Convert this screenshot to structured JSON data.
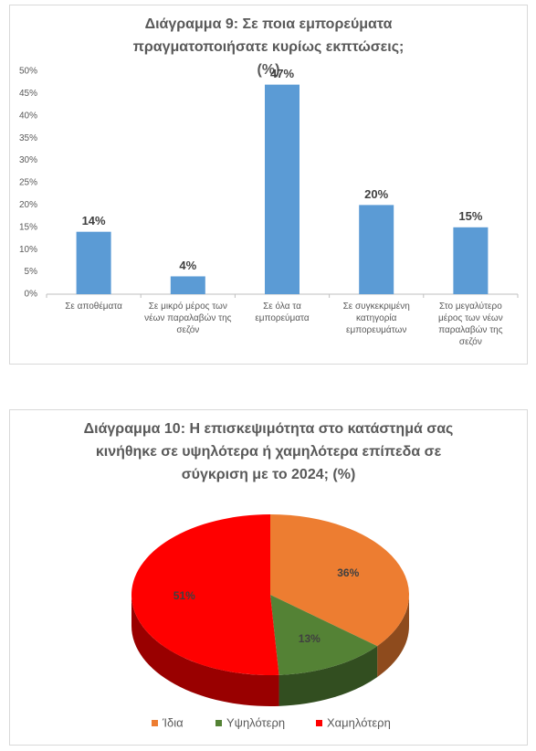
{
  "chart_data": [
    {
      "type": "bar",
      "title": "Διάγραμμα 9: Σε ποια εμπορεύματα πραγματοποιήσατε κυρίως εκπτώσεις; (%)",
      "categories": [
        "Σε αποθέματα",
        "Σε μικρό μέρος των νέων παραλαβών της σεζόν",
        "Σε όλα τα εμπορεύματα",
        "Σε συγκεκριμένη κατηγορία εμπορευμάτων",
        "Στο μεγαλύτερο μέρος των νέων παραλαβών της σεζόν"
      ],
      "values": [
        14,
        4,
        47,
        20,
        15
      ],
      "value_labels": [
        "14%",
        "4%",
        "47%",
        "20%",
        "15%"
      ],
      "color": "#5b9bd5",
      "ylim": [
        0,
        50
      ],
      "yticks": [
        {
          "value": 0,
          "label": "0%"
        },
        {
          "value": 5,
          "label": "5%"
        },
        {
          "value": 10,
          "label": "10%"
        },
        {
          "value": 15,
          "label": "15%"
        },
        {
          "value": 20,
          "label": "20%"
        },
        {
          "value": 25,
          "label": "25%"
        },
        {
          "value": 30,
          "label": "30%"
        },
        {
          "value": 35,
          "label": "35%"
        },
        {
          "value": 40,
          "label": "40%"
        },
        {
          "value": 45,
          "label": "45%"
        },
        {
          "value": 50,
          "label": "50%"
        }
      ],
      "grid": false
    },
    {
      "type": "pie",
      "title": "Διάγραμμα 10: Η επισκεψιμότητα στο κατάστημά σας κινήθηκε σε υψηλότερα ή χαμηλότερα επίπεδα σε σύγκριση με το 2024; (%)",
      "categories": [
        "Ίδια",
        "Υψηλότερη",
        "Χαμηλότερη"
      ],
      "values": [
        36,
        13,
        51
      ],
      "value_labels": [
        "36%",
        "13%",
        "51%"
      ],
      "colors": [
        "#ed7d31",
        "#548235",
        "#ff0000"
      ],
      "legend": "bottom"
    }
  ]
}
